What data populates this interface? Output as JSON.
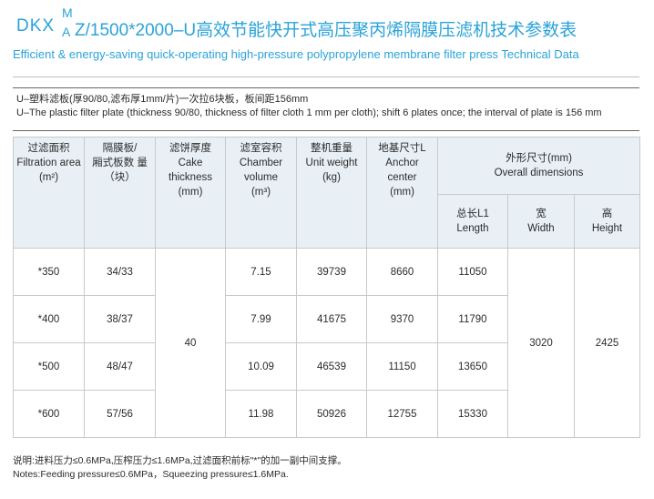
{
  "title": {
    "prefix": "DKX",
    "super": "M",
    "sub": "A",
    "rest": "Z/1500*2000–U高效节能快开式高压聚丙烯隔膜压滤机技术参数表",
    "english": "Efficient & energy-saving quick-operating high-pressure polypropylene membrane filter press Technical Data"
  },
  "description": {
    "cn": "U–塑料滤板(厚90/80,滤布厚1mm/片)一次拉6块板，板间距156mm",
    "en": "U–The plastic filter plate (thickness 90/80, thickness of filter cloth 1 mm per cloth); shift 6 plates once; the interval of plate is 156 mm"
  },
  "headers": {
    "area": {
      "cn": "过滤面积",
      "en": "Filtration area",
      "unit": "(m²)"
    },
    "plates": {
      "cn": "隔膜板/",
      "cn2": "厢式板数 量",
      "unit": "（块）"
    },
    "cake": {
      "cn": "滤饼厚度",
      "en1": "Cake",
      "en2": "thickness",
      "unit": "(mm)"
    },
    "chamber": {
      "cn": "滤室容积",
      "en1": "Chamber",
      "en2": "volume",
      "unit": "(m³)"
    },
    "weight": {
      "cn": "整机重量",
      "en": "Unit weight",
      "unit": "(kg)"
    },
    "anchor": {
      "cn": "地基尺寸L",
      "en1": "Anchor",
      "en2": "center",
      "unit": "(mm)"
    },
    "overall": {
      "cn": "外形尺寸(mm)",
      "en": "Overall  dimensions"
    },
    "length": {
      "cn": "总长L1",
      "en": "Length"
    },
    "width": {
      "cn": "宽",
      "en": "Width"
    },
    "height": {
      "cn": "高",
      "en": "Height"
    }
  },
  "rows": [
    {
      "area": "*350",
      "plates": "34/33",
      "chamber": "7.15",
      "weight": "39739",
      "anchor": "8660",
      "length": "11050"
    },
    {
      "area": "*400",
      "plates": "38/37",
      "chamber": "7.99",
      "weight": "41675",
      "anchor": "9370",
      "length": "11790"
    },
    {
      "area": "*500",
      "plates": "48/47",
      "chamber": "10.09",
      "weight": "46539",
      "anchor": "11150",
      "length": "13650"
    },
    {
      "area": "*600",
      "plates": "57/56",
      "chamber": "11.98",
      "weight": "50926",
      "anchor": "12755",
      "length": "15330"
    }
  ],
  "shared": {
    "cake": "40",
    "width": "3020",
    "height": "2425"
  },
  "notes": {
    "cn": "说明:进料压力≤0.6MPa,压榨压力≤1.6MPa,过滤面积前标\"*\"的加一副中间支撑。",
    "en": "Notes:Feeding pressure≤0.6MPa，Squeezing pressure≤1.6MPa."
  }
}
